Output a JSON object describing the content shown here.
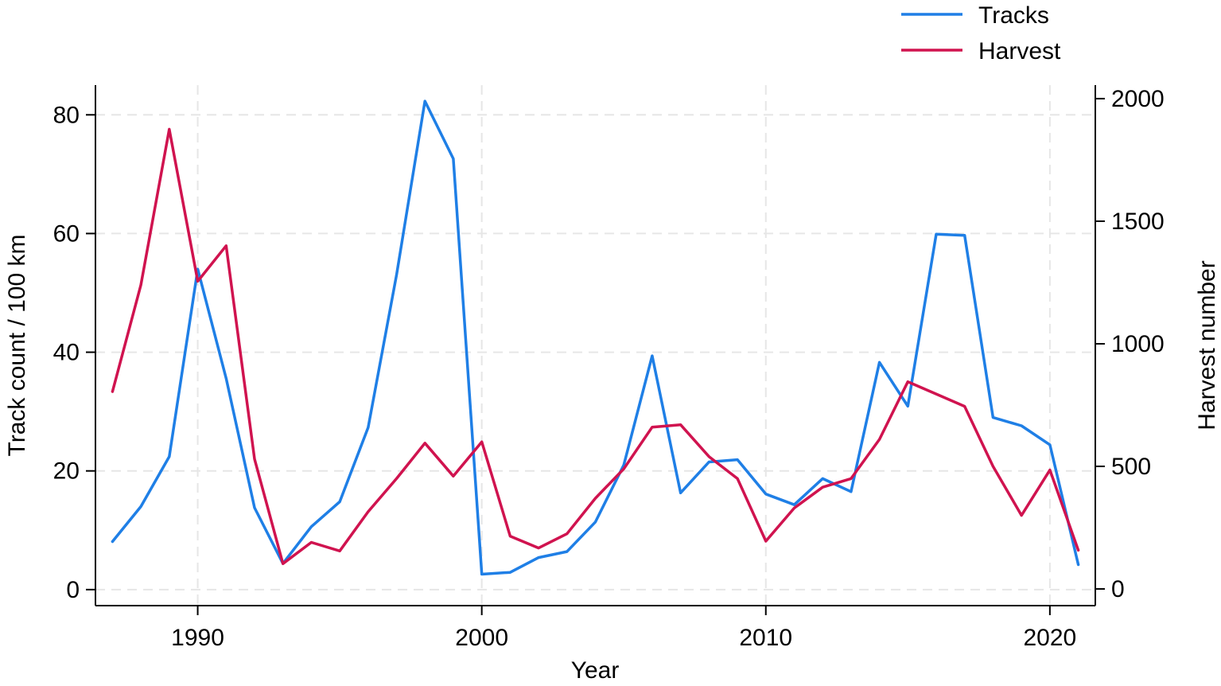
{
  "chart_data": {
    "type": "line",
    "xlabel": "Year",
    "ylabel_left": "Track count / 100 km",
    "ylabel_right": "Harvest number",
    "xlim": [
      1986.4,
      2021.6
    ],
    "ylim_left": [
      -2.7,
      85
    ],
    "ylim_right": [
      -68,
      2055
    ],
    "x_ticks": [
      1990,
      2000,
      2010,
      2020
    ],
    "y_ticks_left": [
      0,
      20,
      40,
      60,
      80
    ],
    "y_ticks_right": [
      0,
      500,
      1000,
      1500,
      2000
    ],
    "grid": true,
    "legend_position": "top-right",
    "x": [
      1987,
      1988,
      1989,
      1990,
      1991,
      1992,
      1993,
      1994,
      1995,
      1996,
      1997,
      1998,
      1999,
      2000,
      2001,
      2002,
      2003,
      2004,
      2005,
      2006,
      2007,
      2008,
      2009,
      2010,
      2011,
      2012,
      2013,
      2014,
      2015,
      2016,
      2017,
      2018,
      2019,
      2020,
      2021
    ],
    "series": [
      {
        "name": "Tracks",
        "axis": "left",
        "color": "#1f7fe6",
        "values": [
          8.1,
          14.0,
          22.4,
          54.0,
          35.6,
          13.8,
          4.4,
          10.6,
          14.8,
          27.3,
          53.0,
          82.3,
          72.6,
          2.6,
          2.9,
          5.4,
          6.4,
          11.4,
          21.0,
          39.4,
          16.3,
          21.5,
          21.9,
          16.1,
          14.3,
          18.7,
          16.5,
          38.3,
          30.9,
          59.9,
          59.7,
          29.0,
          27.6,
          24.4,
          4.2
        ]
      },
      {
        "name": "Harvest",
        "axis": "right",
        "color": "#d0134f",
        "values": [
          805,
          1240,
          1875,
          1255,
          1400,
          530,
          103,
          190,
          155,
          315,
          450,
          595,
          460,
          600,
          215,
          167,
          225,
          370,
          490,
          660,
          670,
          540,
          450,
          195,
          330,
          415,
          450,
          610,
          845,
          795,
          745,
          500,
          300,
          485,
          158
        ]
      }
    ]
  }
}
